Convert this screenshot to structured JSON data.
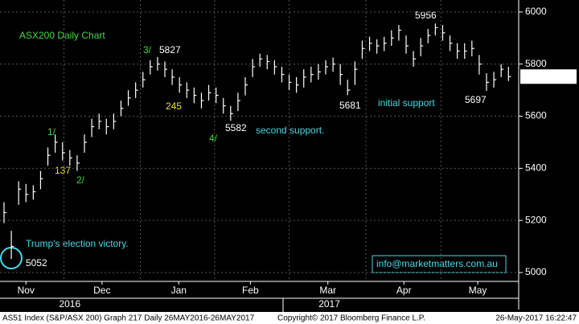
{
  "chart_data": {
    "type": "hlc",
    "title": "ASX200 Daily Chart",
    "x": [
      0,
      1,
      2,
      3,
      4,
      5,
      6,
      7,
      8,
      9,
      10,
      11,
      12,
      13,
      14,
      15,
      16,
      17,
      18,
      19,
      20,
      21,
      22,
      23,
      24,
      25,
      26,
      27,
      28,
      29,
      30,
      31,
      32,
      33,
      34,
      35,
      36,
      37,
      38,
      39,
      40,
      41,
      42,
      43,
      44,
      45,
      46,
      47,
      48,
      49,
      50,
      51,
      52,
      53,
      54,
      55,
      56,
      57,
      58,
      59,
      60,
      61,
      62,
      63,
      64,
      65,
      66,
      67,
      68,
      69
    ],
    "series": [
      {
        "name": "high",
        "color": "#ffffff",
        "values": [
          5270,
          5160,
          5350,
          5340,
          5335,
          5390,
          5480,
          5530,
          5500,
          5470,
          5450,
          5530,
          5590,
          5610,
          5590,
          5610,
          5660,
          5700,
          5730,
          5770,
          5815,
          5827,
          5810,
          5780,
          5750,
          5730,
          5710,
          5690,
          5720,
          5710,
          5670,
          5640,
          5690,
          5750,
          5820,
          5840,
          5835,
          5815,
          5790,
          5760,
          5750,
          5780,
          5790,
          5800,
          5815,
          5825,
          5800,
          5740,
          5810,
          5890,
          5905,
          5895,
          5905,
          5930,
          5950,
          5910,
          5850,
          5900,
          5935,
          5956,
          5950,
          5910,
          5880,
          5880,
          5890,
          5835,
          5765,
          5770,
          5800,
          5790
        ]
      },
      {
        "name": "low",
        "color": "#ffffff",
        "values": [
          5190,
          5052,
          5260,
          5270,
          5280,
          5320,
          5410,
          5460,
          5430,
          5410,
          5390,
          5460,
          5520,
          5550,
          5530,
          5550,
          5600,
          5640,
          5670,
          5710,
          5760,
          5775,
          5750,
          5720,
          5690,
          5670,
          5650,
          5630,
          5660,
          5650,
          5610,
          5582,
          5620,
          5680,
          5750,
          5790,
          5780,
          5760,
          5730,
          5700,
          5690,
          5710,
          5730,
          5740,
          5760,
          5770,
          5720,
          5681,
          5720,
          5820,
          5850,
          5840,
          5850,
          5870,
          5890,
          5840,
          5790,
          5830,
          5880,
          5910,
          5890,
          5850,
          5820,
          5820,
          5830,
          5760,
          5697,
          5710,
          5750,
          5735
        ]
      },
      {
        "name": "close",
        "color": "#ffffff",
        "values": [
          5230,
          5100,
          5320,
          5300,
          5310,
          5360,
          5450,
          5500,
          5460,
          5440,
          5420,
          5500,
          5560,
          5580,
          5560,
          5580,
          5630,
          5670,
          5700,
          5740,
          5790,
          5800,
          5780,
          5750,
          5720,
          5700,
          5680,
          5660,
          5690,
          5680,
          5640,
          5610,
          5660,
          5720,
          5790,
          5820,
          5810,
          5790,
          5760,
          5730,
          5720,
          5750,
          5760,
          5770,
          5790,
          5800,
          5760,
          5700,
          5780,
          5860,
          5880,
          5870,
          5880,
          5900,
          5930,
          5870,
          5820,
          5870,
          5910,
          5940,
          5920,
          5880,
          5850,
          5850,
          5860,
          5800,
          5730,
          5740,
          5780,
          5752
        ]
      }
    ],
    "xlim": [
      -0.55,
      70.4
    ],
    "xticks": [
      {
        "value": 3,
        "label": "Nov"
      },
      {
        "value": 13.4,
        "label": "Dec"
      },
      {
        "value": 23.9,
        "label": "Jan"
      },
      {
        "value": 33.7,
        "label": "Feb"
      },
      {
        "value": 44.3,
        "label": "Mar"
      },
      {
        "value": 54.7,
        "label": "Apr"
      },
      {
        "value": 64.8,
        "label": "May"
      }
    ],
    "years": [
      {
        "value": 9,
        "label": "2016"
      },
      {
        "value": 44.5,
        "label": "2017"
      }
    ],
    "ylim": [
      4966,
      6046
    ],
    "yticks": [
      5000,
      5200,
      5400,
      5600,
      5800,
      6000
    ],
    "grid": true,
    "last_price": "5751.7002",
    "annotations": {
      "trump": "Trump's election victory.",
      "low_5052": "5052",
      "wave1": "1/",
      "wave2": "2/",
      "wave3": "3/",
      "wave4": "4/",
      "pts137": "137",
      "pts245": "245",
      "high_5827": "5827",
      "low_5582": "5582",
      "second_support": "second support.",
      "low_5681": "5681",
      "initial_support": "initial support",
      "high_5956": "5956",
      "low_5697": "5697",
      "email": "info@marketmatters.com.au"
    },
    "footer": {
      "left": "AS51 Index (S&P/ASX 200) Graph 217  Daily 26MAY2016-26MAY2017",
      "middle": "Copyright© 2017 Bloomberg Finance L.P.",
      "right": "26-May-2017 16:22:47"
    }
  }
}
